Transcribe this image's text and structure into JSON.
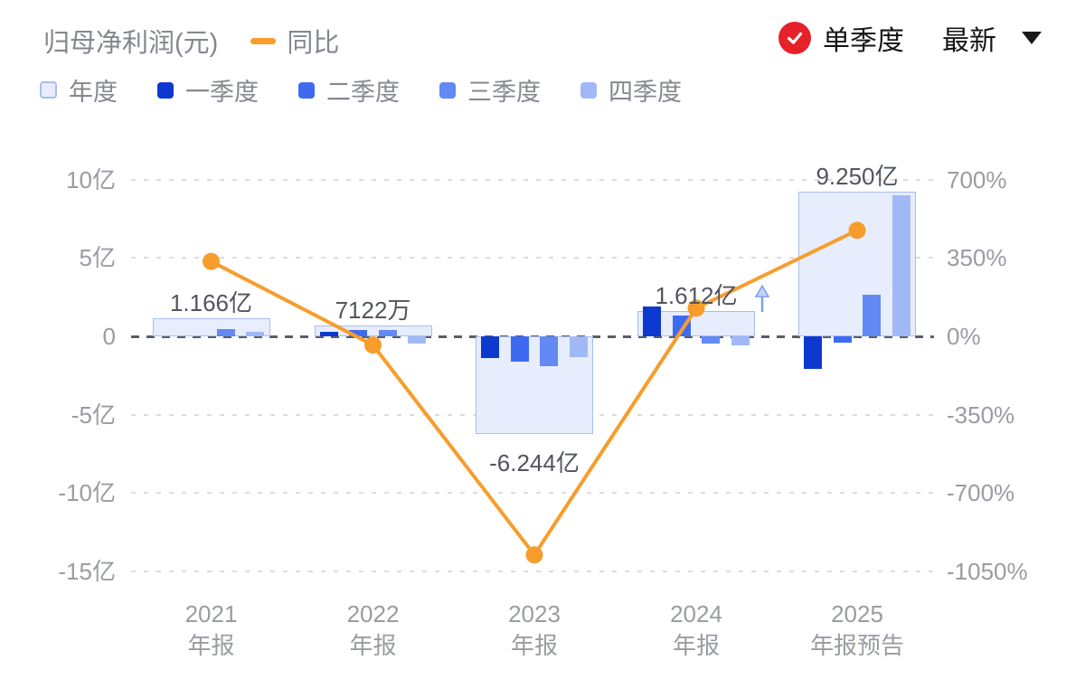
{
  "header": {
    "title": "归母净利润(元)",
    "yoy_legend_label": "同比",
    "controls": {
      "single_quarter": "单季度",
      "period_selector": "最新"
    }
  },
  "legend": {
    "items": [
      {
        "key": "annual",
        "label": "年度",
        "swatch_fill": "#E7EDFC",
        "swatch_border": "#A9BDEF"
      },
      {
        "key": "q1",
        "label": "一季度",
        "swatch_fill": "#0E39D0"
      },
      {
        "key": "q2",
        "label": "二季度",
        "swatch_fill": "#3E6AF2"
      },
      {
        "key": "q3",
        "label": "三季度",
        "swatch_fill": "#6289F4"
      },
      {
        "key": "q4",
        "label": "四季度",
        "swatch_fill": "#A0B9F6"
      }
    ]
  },
  "colors": {
    "annual_fill": "#E7EDFC",
    "annual_border": "#A9BDEF",
    "q1": "#0E39D0",
    "q2": "#3E6AF2",
    "q3": "#6289F4",
    "q4": "#A0B9F6",
    "line": "#F89C2B",
    "badge_red": "#E62129",
    "grid": "#DCDCE0",
    "zero_line": "#595E66",
    "axis_text": "#9A9CA2",
    "value_label_text": "#52555C",
    "title_text": "#85878E",
    "arrow_stroke": "#7F9EF0",
    "arrow_fill": "#C3D2F8"
  },
  "chart_data": {
    "type": "bar",
    "title": "归母净利润(元)",
    "unit": "亿元",
    "categories": [
      [
        "2021",
        "年报"
      ],
      [
        "2022",
        "年报"
      ],
      [
        "2023",
        "年报"
      ],
      [
        "2024",
        "年报"
      ],
      [
        "2025",
        "年报预告"
      ]
    ],
    "annual_series": {
      "name": "年度",
      "values_yi": [
        1.166,
        0.7122,
        -6.244,
        1.612,
        9.25
      ],
      "labels": [
        "1.166亿",
        "7122万",
        "-6.244亿",
        "1.612亿",
        "9.250亿"
      ]
    },
    "quarter_series": [
      {
        "name": "一季度",
        "values_yi": [
          null,
          0.29,
          -1.39,
          1.9,
          -2.08
        ]
      },
      {
        "name": "二季度",
        "values_yi": [
          null,
          0.4,
          -1.62,
          1.33,
          -0.4
        ]
      },
      {
        "name": "三季度",
        "values_yi": [
          0.46,
          0.4,
          -1.9,
          -0.46,
          2.66
        ]
      },
      {
        "name": "四季度",
        "values_yi": [
          0.28,
          -0.46,
          -1.33,
          -0.58,
          9.0
        ]
      }
    ],
    "yoy_line": {
      "name": "同比",
      "unit": "%",
      "values": [
        335,
        -38.9,
        -976.8,
        125.8,
        473.9
      ]
    },
    "left_axis": {
      "label": "归母净利润",
      "ticks": [
        "10亿",
        "5亿",
        "0",
        "-5亿",
        "-10亿",
        "-15亿"
      ],
      "values_yi": [
        10,
        5,
        0,
        -5,
        -10,
        -15
      ]
    },
    "right_axis": {
      "label": "同比",
      "ticks": [
        "700%",
        "350%",
        "0%",
        "-350%",
        "-700%",
        "-1050%"
      ],
      "values_pct": [
        700,
        350,
        0,
        -350,
        -700,
        -1050
      ]
    },
    "annotations": [
      {
        "category_index": 3,
        "type": "up-arrow"
      }
    ],
    "grid": "horizontal dashed, zero line emphasized",
    "legend_position": "top-left"
  }
}
